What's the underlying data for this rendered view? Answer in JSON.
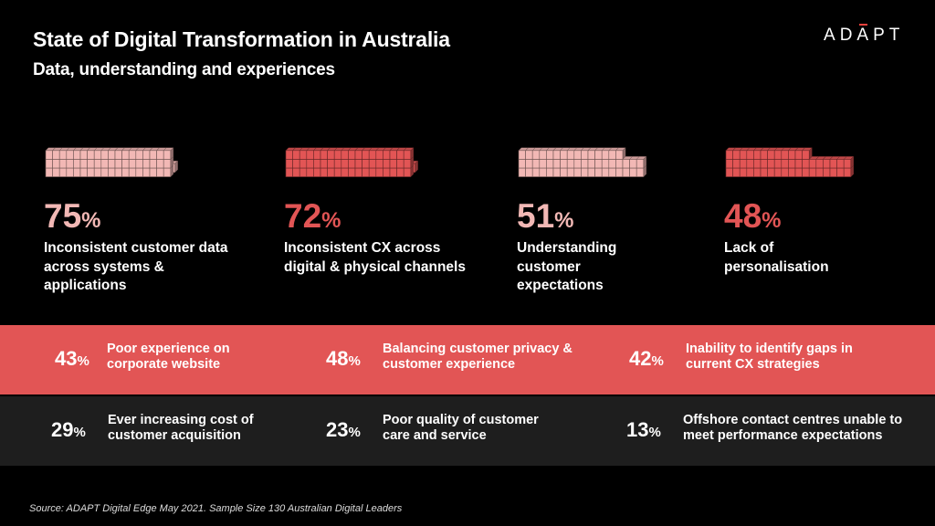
{
  "header": {
    "title": "State of Digital Transformation in Australia",
    "subtitle": "Data, understanding and experiences",
    "logo_text": "ADAPT"
  },
  "colors": {
    "background": "#000000",
    "accent_red": "#e25555",
    "light_pink": "#f2b8b5",
    "dark_band": "#1e1e1e",
    "text": "#ffffff"
  },
  "chart_data": {
    "type": "bar",
    "top_stats": [
      {
        "value": 75,
        "value_text": "75",
        "unit": "%",
        "label": "Inconsistent customer data across systems & applications",
        "color": "#f2b8b5"
      },
      {
        "value": 72,
        "value_text": "72",
        "unit": "%",
        "label": "Inconsistent CX across digital & physical channels",
        "color": "#e25555"
      },
      {
        "value": 51,
        "value_text": "51",
        "unit": "%",
        "label": "Understanding customer expectations",
        "color": "#f2b8b5"
      },
      {
        "value": 48,
        "value_text": "48",
        "unit": "%",
        "label": "Lack of personalisation",
        "color": "#e25555"
      }
    ],
    "red_band": [
      {
        "value": 43,
        "value_text": "43",
        "unit": "%",
        "label": "Poor experience on corporate website"
      },
      {
        "value": 48,
        "value_text": "48",
        "unit": "%",
        "label": "Balancing customer privacy & customer experience"
      },
      {
        "value": 42,
        "value_text": "42",
        "unit": "%",
        "label": "Inability to identify gaps in current CX strategies"
      }
    ],
    "dark_band": [
      {
        "value": 29,
        "value_text": "29",
        "unit": "%",
        "label": "Ever increasing cost of customer acquisition"
      },
      {
        "value": 23,
        "value_text": "23",
        "unit": "%",
        "label": "Poor quality of customer care and service"
      },
      {
        "value": 13,
        "value_text": "13",
        "unit": "%",
        "label": "Offshore contact centres unable to meet performance expectations"
      }
    ]
  },
  "footer": {
    "source": "Source: ADAPT  Digital Edge May 2021. Sample Size 130 Australian Digital Leaders"
  }
}
